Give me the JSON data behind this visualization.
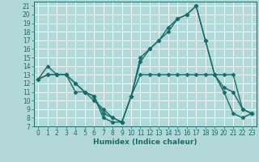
{
  "title": "",
  "xlabel": "Humidex (Indice chaleur)",
  "background_color": "#b2d8d8",
  "line_color": "#1a6b6b",
  "xlim": [
    -0.5,
    23.5
  ],
  "ylim": [
    7,
    21.5
  ],
  "xticks": [
    0,
    1,
    2,
    3,
    4,
    5,
    6,
    7,
    8,
    9,
    10,
    11,
    12,
    13,
    14,
    15,
    16,
    17,
    18,
    19,
    20,
    21,
    22,
    23
  ],
  "yticks": [
    7,
    8,
    9,
    10,
    11,
    12,
    13,
    14,
    15,
    16,
    17,
    18,
    19,
    20,
    21
  ],
  "series": [
    {
      "x": [
        0,
        1,
        2,
        3,
        4,
        5,
        6,
        7,
        8,
        9,
        10,
        11,
        12,
        13,
        14,
        15,
        16,
        17,
        18,
        19,
        20,
        21,
        22,
        23
      ],
      "y": [
        12.5,
        14,
        13,
        13,
        12,
        11,
        10.5,
        8,
        7.5,
        7.5,
        10.5,
        15,
        16,
        17,
        18.5,
        19.5,
        20,
        21,
        17,
        13,
        11,
        8.5,
        8,
        8.5
      ]
    },
    {
      "x": [
        0,
        1,
        2,
        3,
        4,
        5,
        6,
        7,
        8,
        9,
        10,
        11,
        12,
        13,
        14,
        15,
        16,
        17,
        18,
        19,
        20,
        21,
        22,
        23
      ],
      "y": [
        12.5,
        13,
        13,
        13,
        11,
        11,
        10,
        9,
        8,
        7.5,
        10.5,
        13,
        13,
        13,
        13,
        13,
        13,
        13,
        13,
        13,
        13,
        13,
        9,
        8.5
      ]
    },
    {
      "x": [
        0,
        1,
        2,
        3,
        4,
        5,
        6,
        7,
        8,
        9,
        10,
        11,
        12,
        13,
        14,
        15,
        16,
        17,
        18,
        19,
        20,
        21,
        22,
        23
      ],
      "y": [
        12.5,
        13,
        13,
        13,
        12,
        11,
        10.5,
        8.5,
        8,
        7.5,
        10.5,
        14.5,
        16,
        17,
        18,
        19.5,
        20,
        21,
        17,
        13,
        11.5,
        11,
        9,
        8.5
      ]
    }
  ],
  "grid_color": "#ffffff",
  "marker": "D",
  "markersize": 2.5,
  "linewidth": 1.0,
  "tick_labelsize": 5.5,
  "xlabel_fontsize": 6.5
}
